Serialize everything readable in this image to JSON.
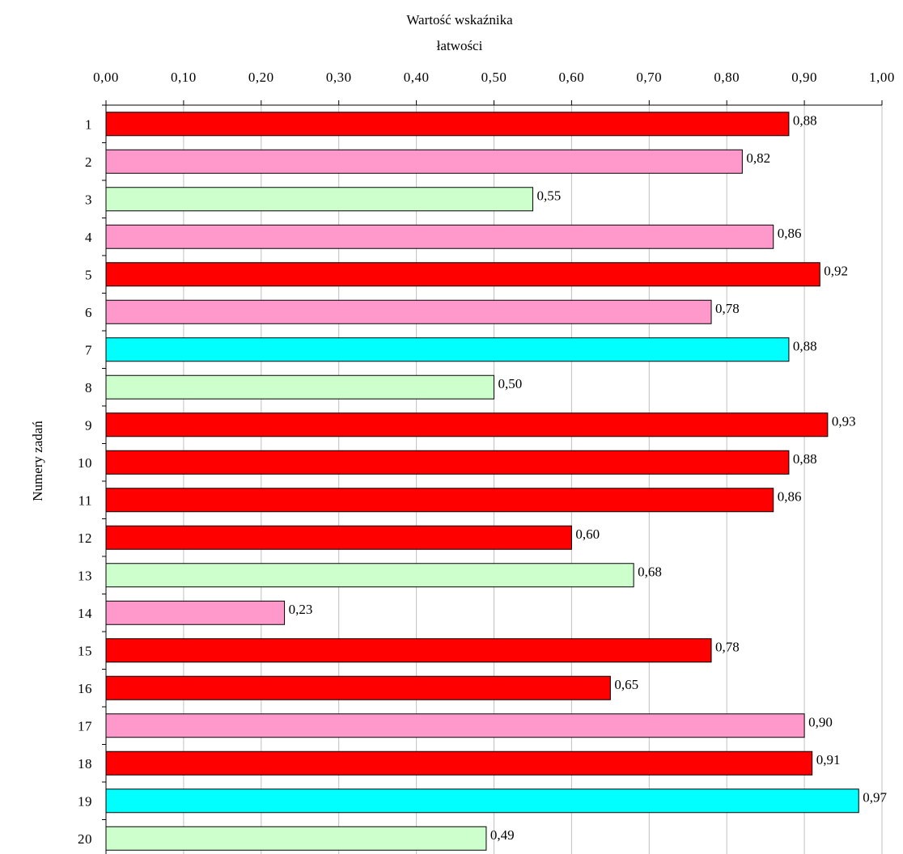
{
  "chart_data": {
    "type": "bar",
    "orientation": "horizontal",
    "title": "Wartość wskaźnika łatwości",
    "title_lines": [
      "Wartość wskaźnika",
      "łatwości"
    ],
    "ylabel": "Numery zadań",
    "xlim": [
      0,
      1
    ],
    "x_ticks": [
      "0,00",
      "0,10",
      "0,20",
      "0,30",
      "0,40",
      "0,50",
      "0,60",
      "0,70",
      "0,80",
      "0,90",
      "1,00"
    ],
    "x_axis_position": "top",
    "grid": "vertical",
    "legend": "none",
    "categories": [
      "1",
      "2",
      "3",
      "4",
      "5",
      "6",
      "7",
      "8",
      "9",
      "10",
      "11",
      "12",
      "13",
      "14",
      "15",
      "16",
      "17",
      "18",
      "19",
      "20"
    ],
    "values": [
      0.88,
      0.82,
      0.55,
      0.86,
      0.92,
      0.78,
      0.88,
      0.5,
      0.93,
      0.88,
      0.86,
      0.6,
      0.68,
      0.23,
      0.78,
      0.65,
      0.9,
      0.91,
      0.97,
      0.49
    ],
    "value_labels": [
      "0,88",
      "0,82",
      "0,55",
      "0,86",
      "0,92",
      "0,78",
      "0,88",
      "0,50",
      "0,93",
      "0,88",
      "0,86",
      "0,60",
      "0,68",
      "0,23",
      "0,78",
      "0,65",
      "0,90",
      "0,91",
      "0,97",
      "0,49"
    ],
    "bar_colors": [
      "#ff0000",
      "#ff99cc",
      "#ccffcc",
      "#ff99cc",
      "#ff0000",
      "#ff99cc",
      "#00ffff",
      "#ccffcc",
      "#ff0000",
      "#ff0000",
      "#ff0000",
      "#ff0000",
      "#ccffcc",
      "#ff99cc",
      "#ff0000",
      "#ff0000",
      "#ff99cc",
      "#ff0000",
      "#00ffff",
      "#ccffcc"
    ]
  }
}
